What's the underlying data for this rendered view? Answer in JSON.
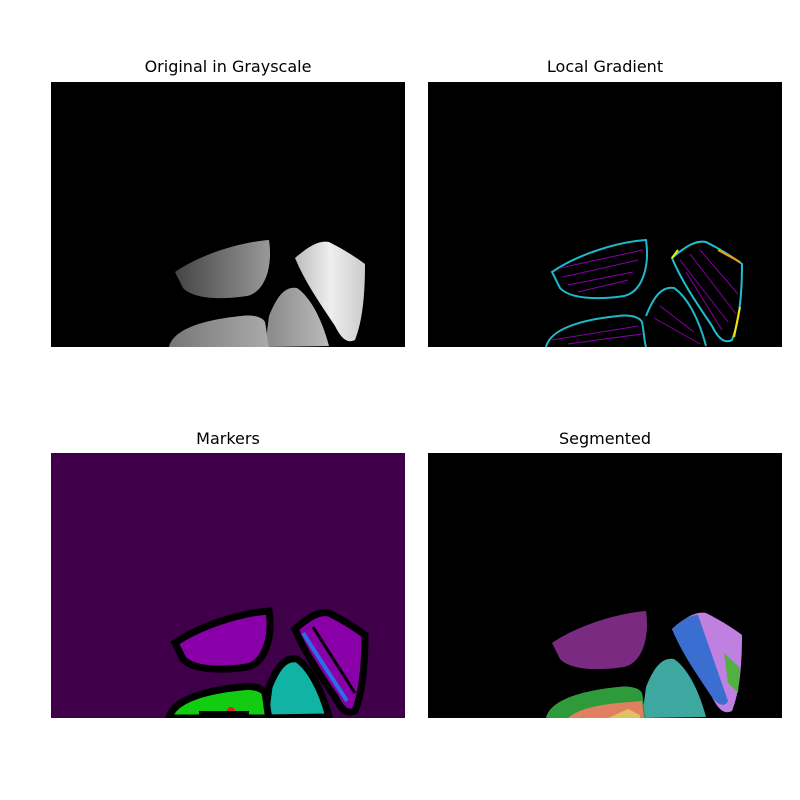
{
  "figure": {
    "panels": [
      {
        "title": "Original in Grayscale",
        "background": "#000000"
      },
      {
        "title": "Local Gradient",
        "background": "#000000"
      },
      {
        "title": "Markers",
        "background": "#3f0049"
      },
      {
        "title": "Segmented",
        "background": "#000000"
      }
    ]
  },
  "colors": {
    "markers_background": "#3f0049",
    "markers_purple": "#8a00a8",
    "markers_green": "#11cc11",
    "markers_teal": "#11b4a4",
    "markers_blue": "#2a6ee8",
    "gradient_cyan": "#1fb8c8",
    "gradient_magenta": "#a000c0",
    "segment_purple": "#7a2a80",
    "segment_blue": "#3a6ed0",
    "segment_lavender": "#c080e0",
    "segment_teal": "#3ea8a0",
    "segment_green": "#2f9a3a"
  }
}
